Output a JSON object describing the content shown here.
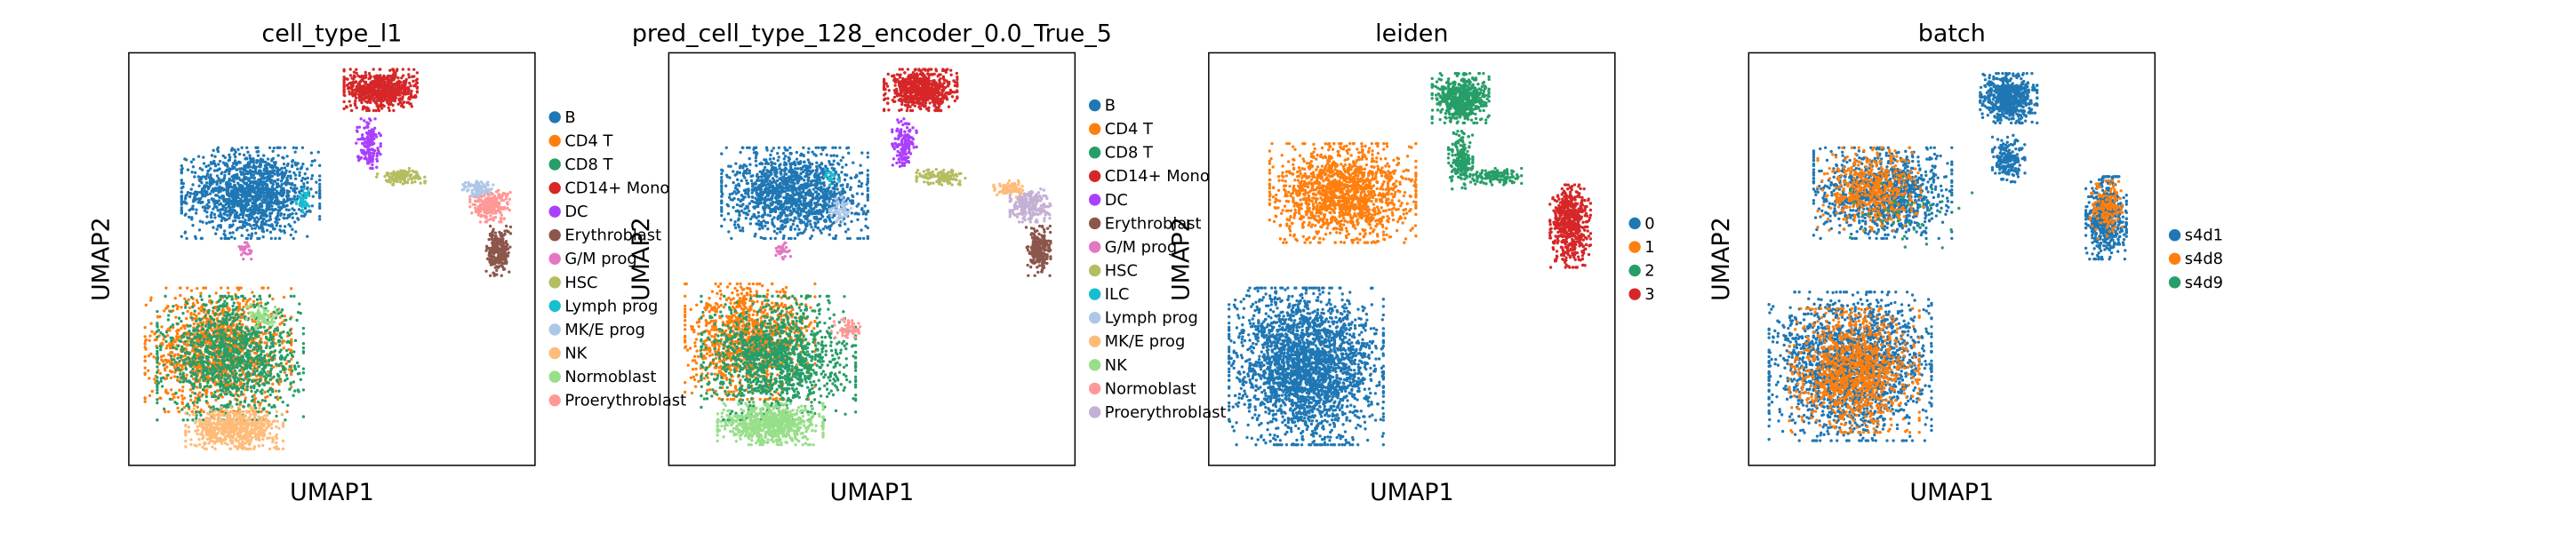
{
  "chart_data": [
    {
      "type": "scatter",
      "title": "cell_type_l1",
      "xlabel": "UMAP1",
      "ylabel": "UMAP2",
      "ticks": "none",
      "legend": {
        "placement": "right-outside",
        "entries": [
          {
            "label": "B",
            "color": "#1f77b4"
          },
          {
            "label": "CD4 T",
            "color": "#ff7f0e"
          },
          {
            "label": "CD8 T",
            "color": "#279e68"
          },
          {
            "label": "CD14+ Mono",
            "color": "#d62728"
          },
          {
            "label": "DC",
            "color": "#aa40fc"
          },
          {
            "label": "Erythroblast",
            "color": "#8c564b"
          },
          {
            "label": "G/M prog",
            "color": "#e377c2"
          },
          {
            "label": "HSC",
            "color": "#b5bd61"
          },
          {
            "label": "Lymph prog",
            "color": "#17becf"
          },
          {
            "label": "MK/E prog",
            "color": "#aec7e8"
          },
          {
            "label": "NK",
            "color": "#ffbb78"
          },
          {
            "label": "Normoblast",
            "color": "#98df8a"
          },
          {
            "label": "Proerythroblast",
            "color": "#ff9896"
          }
        ]
      },
      "clusters": [
        {
          "label": "B",
          "cx": 0.3,
          "cy": 0.66,
          "rx": 0.17,
          "ry": 0.11,
          "n": 1400
        },
        {
          "label": "CD4 T",
          "cx": 0.22,
          "cy": 0.28,
          "rx": 0.18,
          "ry": 0.15,
          "n": 1300
        },
        {
          "label": "CD8 T",
          "cx": 0.25,
          "cy": 0.26,
          "rx": 0.18,
          "ry": 0.15,
          "n": 1200
        },
        {
          "label": "NK",
          "cx": 0.26,
          "cy": 0.09,
          "rx": 0.12,
          "ry": 0.05,
          "n": 600
        },
        {
          "label": "CD14+ Mono",
          "cx": 0.62,
          "cy": 0.91,
          "rx": 0.09,
          "ry": 0.05,
          "n": 700
        },
        {
          "label": "DC",
          "cx": 0.59,
          "cy": 0.78,
          "rx": 0.03,
          "ry": 0.06,
          "n": 150
        },
        {
          "label": "HSC",
          "cx": 0.67,
          "cy": 0.7,
          "rx": 0.06,
          "ry": 0.02,
          "n": 120
        },
        {
          "label": "Proerythroblast",
          "cx": 0.89,
          "cy": 0.63,
          "rx": 0.05,
          "ry": 0.04,
          "n": 250
        },
        {
          "label": "MK/E prog",
          "cx": 0.86,
          "cy": 0.67,
          "rx": 0.04,
          "ry": 0.02,
          "n": 80
        },
        {
          "label": "Erythroblast",
          "cx": 0.91,
          "cy": 0.52,
          "rx": 0.03,
          "ry": 0.06,
          "n": 250
        },
        {
          "label": "Lymph prog",
          "cx": 0.43,
          "cy": 0.64,
          "rx": 0.02,
          "ry": 0.03,
          "n": 40
        },
        {
          "label": "Normoblast",
          "cx": 0.33,
          "cy": 0.36,
          "rx": 0.04,
          "ry": 0.03,
          "n": 60
        },
        {
          "label": "G/M prog",
          "cx": 0.29,
          "cy": 0.52,
          "rx": 0.02,
          "ry": 0.02,
          "n": 30
        }
      ]
    },
    {
      "type": "scatter",
      "title": "pred_cell_type_128_encoder_0.0_True_5",
      "xlabel": "UMAP1",
      "ylabel": "UMAP2",
      "ticks": "none",
      "legend": {
        "placement": "right-outside",
        "entries": [
          {
            "label": "B",
            "color": "#1f77b4"
          },
          {
            "label": "CD4 T",
            "color": "#ff7f0e"
          },
          {
            "label": "CD8 T",
            "color": "#279e68"
          },
          {
            "label": "CD14+ Mono",
            "color": "#d62728"
          },
          {
            "label": "DC",
            "color": "#aa40fc"
          },
          {
            "label": "Erythroblast",
            "color": "#8c564b"
          },
          {
            "label": "G/M prog",
            "color": "#e377c2"
          },
          {
            "label": "HSC",
            "color": "#b5bd61"
          },
          {
            "label": "ILC",
            "color": "#17becf"
          },
          {
            "label": "Lymph prog",
            "color": "#aec7e8"
          },
          {
            "label": "MK/E prog",
            "color": "#ffbb78"
          },
          {
            "label": "NK",
            "color": "#98df8a"
          },
          {
            "label": "Normoblast",
            "color": "#ff9896"
          },
          {
            "label": "Proerythroblast",
            "color": "#c5b0d5"
          }
        ]
      },
      "clusters": [
        {
          "label": "B",
          "cx": 0.31,
          "cy": 0.66,
          "rx": 0.18,
          "ry": 0.11,
          "n": 1400
        },
        {
          "label": "CD4 T",
          "cx": 0.2,
          "cy": 0.3,
          "rx": 0.16,
          "ry": 0.14,
          "n": 1100
        },
        {
          "label": "CD8 T",
          "cx": 0.27,
          "cy": 0.26,
          "rx": 0.19,
          "ry": 0.15,
          "n": 1300
        },
        {
          "label": "NK",
          "cx": 0.25,
          "cy": 0.1,
          "rx": 0.13,
          "ry": 0.05,
          "n": 700
        },
        {
          "label": "CD14+ Mono",
          "cx": 0.62,
          "cy": 0.91,
          "rx": 0.09,
          "ry": 0.05,
          "n": 700
        },
        {
          "label": "DC",
          "cx": 0.58,
          "cy": 0.78,
          "rx": 0.03,
          "ry": 0.06,
          "n": 150
        },
        {
          "label": "HSC",
          "cx": 0.67,
          "cy": 0.7,
          "rx": 0.06,
          "ry": 0.02,
          "n": 120
        },
        {
          "label": "Proerythroblast",
          "cx": 0.89,
          "cy": 0.63,
          "rx": 0.05,
          "ry": 0.04,
          "n": 250
        },
        {
          "label": "MK/E prog",
          "cx": 0.84,
          "cy": 0.67,
          "rx": 0.04,
          "ry": 0.02,
          "n": 80
        },
        {
          "label": "Erythroblast",
          "cx": 0.91,
          "cy": 0.52,
          "rx": 0.03,
          "ry": 0.06,
          "n": 250
        },
        {
          "label": "Lymph prog",
          "cx": 0.42,
          "cy": 0.62,
          "rx": 0.03,
          "ry": 0.03,
          "n": 60
        },
        {
          "label": "Normoblast",
          "cx": 0.44,
          "cy": 0.33,
          "rx": 0.04,
          "ry": 0.03,
          "n": 60
        },
        {
          "label": "G/M prog",
          "cx": 0.28,
          "cy": 0.52,
          "rx": 0.02,
          "ry": 0.02,
          "n": 30
        },
        {
          "label": "ILC",
          "cx": 0.4,
          "cy": 0.7,
          "rx": 0.02,
          "ry": 0.02,
          "n": 20
        }
      ]
    },
    {
      "type": "scatter",
      "title": "leiden",
      "xlabel": "UMAP1",
      "ylabel": "UMAP2",
      "ticks": "none",
      "legend": {
        "placement": "right-outside",
        "entries": [
          {
            "label": "0",
            "color": "#1f77b4"
          },
          {
            "label": "1",
            "color": "#ff7f0e"
          },
          {
            "label": "2",
            "color": "#279e68"
          },
          {
            "label": "3",
            "color": "#d62728"
          }
        ]
      },
      "clusters": [
        {
          "label": "0",
          "cx": 0.24,
          "cy": 0.24,
          "rx": 0.19,
          "ry": 0.19,
          "n": 2600
        },
        {
          "label": "1",
          "cx": 0.33,
          "cy": 0.66,
          "rx": 0.18,
          "ry": 0.12,
          "n": 1500
        },
        {
          "label": "2",
          "cx": 0.62,
          "cy": 0.89,
          "rx": 0.07,
          "ry": 0.06,
          "n": 600
        },
        {
          "label": "2",
          "cx": 0.62,
          "cy": 0.74,
          "rx": 0.03,
          "ry": 0.07,
          "n": 200
        },
        {
          "label": "2",
          "cx": 0.7,
          "cy": 0.7,
          "rx": 0.07,
          "ry": 0.02,
          "n": 150
        },
        {
          "label": "3",
          "cx": 0.89,
          "cy": 0.58,
          "rx": 0.05,
          "ry": 0.1,
          "n": 600
        }
      ]
    },
    {
      "type": "scatter",
      "title": "batch",
      "xlabel": "UMAP1",
      "ylabel": "UMAP2",
      "ticks": "none",
      "legend": {
        "placement": "right-outside",
        "entries": [
          {
            "label": "s4d1",
            "color": "#1f77b4"
          },
          {
            "label": "s4d8",
            "color": "#ff7f0e"
          },
          {
            "label": "s4d9",
            "color": "#279e68"
          }
        ]
      },
      "clusters": [
        {
          "label": "s4d1",
          "cx": 0.25,
          "cy": 0.24,
          "rx": 0.2,
          "ry": 0.18,
          "n": 2000
        },
        {
          "label": "s4d8",
          "cx": 0.26,
          "cy": 0.23,
          "rx": 0.16,
          "ry": 0.15,
          "n": 1100
        },
        {
          "label": "s4d1",
          "cx": 0.33,
          "cy": 0.66,
          "rx": 0.17,
          "ry": 0.11,
          "n": 1100
        },
        {
          "label": "s4d8",
          "cx": 0.3,
          "cy": 0.67,
          "rx": 0.13,
          "ry": 0.1,
          "n": 500
        },
        {
          "label": "s4d1",
          "cx": 0.64,
          "cy": 0.89,
          "rx": 0.07,
          "ry": 0.06,
          "n": 600
        },
        {
          "label": "s4d1",
          "cx": 0.64,
          "cy": 0.74,
          "rx": 0.04,
          "ry": 0.06,
          "n": 200
        },
        {
          "label": "s4d1",
          "cx": 0.88,
          "cy": 0.6,
          "rx": 0.05,
          "ry": 0.1,
          "n": 550
        },
        {
          "label": "s4d8",
          "cx": 0.88,
          "cy": 0.62,
          "rx": 0.04,
          "ry": 0.07,
          "n": 150
        },
        {
          "label": "s4d9",
          "cx": 0.4,
          "cy": 0.6,
          "rx": 0.15,
          "ry": 0.1,
          "n": 40
        }
      ]
    }
  ]
}
